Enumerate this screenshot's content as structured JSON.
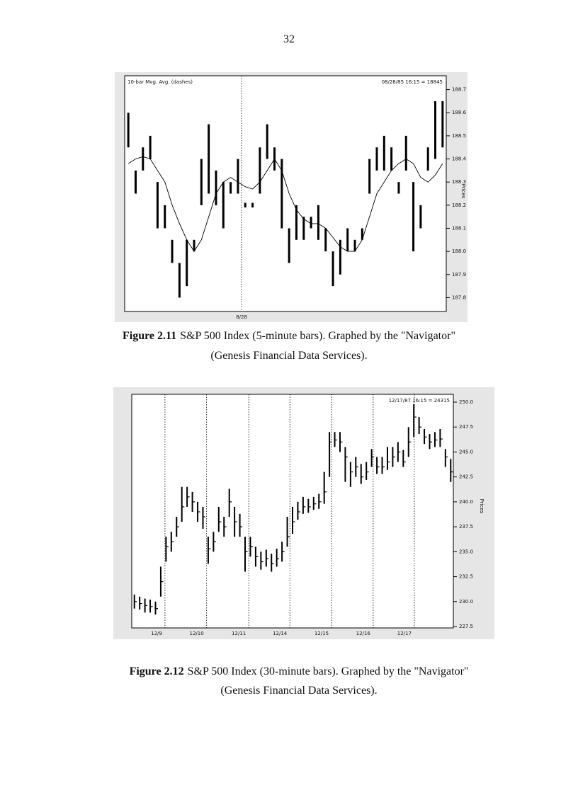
{
  "page_number": "32",
  "chart_data": [
    {
      "type": "ohlc",
      "annotations": [
        "10-bar Mvg. Avg. (dashes)",
        "08/28/85 16:15 = 18845"
      ],
      "y_label": "Prices",
      "xlim": [
        -0.5,
        43.5
      ],
      "xticks": [
        {
          "value": 15.5,
          "label": "8/28"
        }
      ],
      "ylim": [
        187.74,
        188.76
      ],
      "yticks": [
        187.8,
        187.9,
        {
          "value": 188,
          "label": "188.0"
        },
        188.1,
        188.2,
        188.3,
        188.4,
        188.5,
        188.6,
        188.7
      ],
      "color": "#000000",
      "high": [
        188.6,
        188.35,
        188.45,
        188.5,
        188.3,
        188.2,
        188.05,
        187.95,
        188.05,
        188.05,
        188.4,
        188.55,
        188.35,
        188.3,
        188.3,
        188.4,
        188.21,
        188.21,
        188.45,
        188.55,
        188.45,
        188.4,
        188.1,
        188.2,
        188.15,
        188.15,
        188.2,
        188.1,
        188.0,
        188.05,
        188.1,
        188.05,
        188.1,
        188.4,
        188.45,
        188.5,
        188.45,
        188.3,
        188.5,
        188.3,
        188.2,
        188.45,
        188.65,
        188.65
      ],
      "low": [
        188.45,
        188.25,
        188.35,
        188.4,
        188.1,
        188.1,
        187.95,
        187.8,
        187.85,
        188.0,
        188.2,
        188.25,
        188.2,
        188.1,
        188.25,
        188.25,
        188.19,
        188.19,
        188.25,
        188.4,
        188.35,
        188.1,
        187.95,
        188.05,
        188.05,
        188.1,
        188.05,
        188.0,
        187.85,
        187.9,
        188.0,
        188.0,
        188.05,
        188.25,
        188.35,
        188.35,
        188.35,
        188.25,
        188.35,
        188.0,
        188.1,
        188.35,
        188.4,
        188.45
      ],
      "moving_average": [
        188.38,
        188.4,
        188.41,
        188.4,
        188.35,
        188.3,
        188.2,
        188.12,
        188.05,
        188.0,
        188.05,
        188.15,
        188.25,
        188.3,
        188.32,
        188.3,
        188.28,
        188.27,
        188.3,
        188.35,
        188.4,
        188.35,
        188.25,
        188.18,
        188.14,
        188.12,
        188.12,
        188.1,
        188.06,
        188.02,
        188.0,
        188.0,
        188.05,
        188.15,
        188.25,
        188.3,
        188.35,
        188.38,
        188.4,
        188.38,
        188.32,
        188.3,
        188.33,
        188.38
      ]
    },
    {
      "type": "ohlc",
      "annotations": [
        "12/17/87 16:15 = 24315"
      ],
      "y_label": "Prices",
      "xlim": [
        -0.5,
        60.5
      ],
      "xticks": [
        {
          "value": 5.8,
          "label": "12/9"
        },
        {
          "value": 13.7,
          "label": "12/10"
        },
        {
          "value": 21.7,
          "label": "12/11"
        },
        {
          "value": 29.5,
          "label": "12/14"
        },
        {
          "value": 37.4,
          "label": "12/15"
        },
        {
          "value": 45.3,
          "label": "12/16"
        },
        {
          "value": 53.1,
          "label": "12/17"
        }
      ],
      "ylim": [
        227.36,
        250.78
      ],
      "yticks": [
        {
          "value": 227.5,
          "label": "227.5"
        },
        {
          "value": 230,
          "label": "230.0"
        },
        {
          "value": 232.5,
          "label": "232.5"
        },
        {
          "value": 235,
          "label": "235.0"
        },
        {
          "value": 237.5,
          "label": "237.5"
        },
        {
          "value": 240,
          "label": "240.0"
        },
        {
          "value": 242.5,
          "label": "242.5"
        },
        {
          "value": 245,
          "label": "245.0"
        },
        {
          "value": 247.5,
          "label": "247.5"
        },
        {
          "value": 250,
          "label": "250.0"
        }
      ],
      "color": "#000000",
      "high": [
        230.7,
        230.5,
        230.3,
        230.2,
        230,
        233.5,
        236.5,
        237,
        238.5,
        241.5,
        241.5,
        241,
        240,
        239.5,
        236.5,
        237,
        239.5,
        238.5,
        241.3,
        239.5,
        238.8,
        236.5,
        236.5,
        235.5,
        235,
        235.2,
        234.8,
        235.3,
        236,
        238.5,
        239.5,
        240,
        240.5,
        240.3,
        240.5,
        240.8,
        243,
        247,
        247,
        247,
        245.5,
        244,
        244.5,
        243.8,
        244,
        245.3,
        244.5,
        244.5,
        245.5,
        245.5,
        246,
        245.2,
        247.5,
        249.8,
        248.5,
        247.3,
        246.8,
        247,
        247.3,
        245.3,
        244.3
      ],
      "low": [
        229.3,
        229.2,
        228.9,
        228.9,
        228.7,
        230.5,
        234,
        235,
        236.5,
        238,
        239.5,
        239,
        238,
        237.3,
        233.8,
        235,
        237,
        236.5,
        238.5,
        236.5,
        236.5,
        233,
        234.5,
        233.5,
        233.2,
        233.5,
        233,
        233.5,
        234,
        235.5,
        236.8,
        238.2,
        238.8,
        238.9,
        239.2,
        239.3,
        239.8,
        242.5,
        245.5,
        245,
        242,
        241.5,
        242.5,
        241.8,
        242.2,
        243.5,
        242.8,
        242.8,
        243.2,
        243.5,
        244,
        243.5,
        244.5,
        246.5,
        246.8,
        245.8,
        245.3,
        245.5,
        245.5,
        243.5,
        242
      ],
      "close": [
        230,
        229.8,
        229.6,
        229.5,
        229.3,
        232,
        235.5,
        236,
        237.5,
        239.5,
        240.5,
        240,
        239,
        238.5,
        235.3,
        236,
        238,
        237.5,
        240,
        238,
        237.5,
        235,
        235.5,
        234.5,
        234,
        234.3,
        233.8,
        234.3,
        235,
        236.5,
        238,
        239,
        239.5,
        239.5,
        239.8,
        240,
        241,
        246,
        246.2,
        246,
        244.5,
        243,
        243.5,
        242.5,
        243,
        244.5,
        243.5,
        243.5,
        244,
        244.5,
        245,
        244,
        246,
        248.5,
        247.5,
        246.5,
        246,
        246.2,
        246.3,
        244.5,
        243
      ]
    }
  ],
  "captions": [
    {
      "label": "Figure 2.11",
      "line1": "S&P 500 Index (5-minute bars). Graphed by the \"Navigator\"",
      "line2": "(Genesis Financial Data Services)."
    },
    {
      "label": "Figure 2.12",
      "line1": "S&P 500 Index (30-minute bars). Graphed by the \"Navigator\"",
      "line2": "(Genesis Financial Data Services)."
    }
  ]
}
